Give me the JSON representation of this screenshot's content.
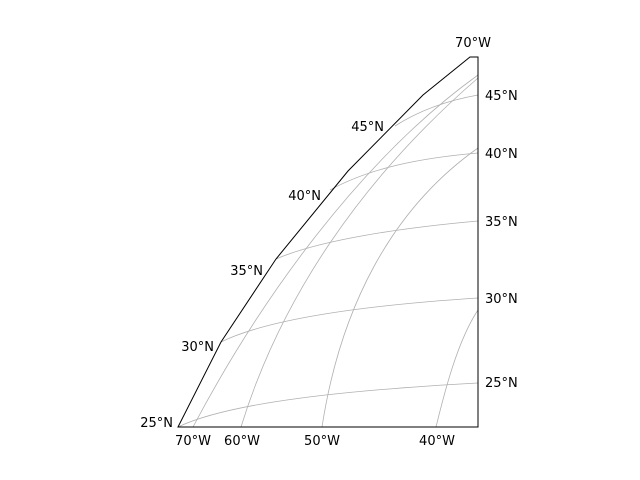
{
  "map": {
    "projection": "conic",
    "grid_color": "#b0b0b0",
    "edge_color": "#000000",
    "meridians": [
      {
        "label": "70°W",
        "lon": -70
      },
      {
        "label": "60°W",
        "lon": -60
      },
      {
        "label": "50°W",
        "lon": -50
      },
      {
        "label": "40°W",
        "lon": -40
      }
    ],
    "parallels": [
      {
        "label": "25°N",
        "lat": 25
      },
      {
        "label": "30°N",
        "lat": 30
      },
      {
        "label": "35°N",
        "lat": 35
      },
      {
        "label": "40°N",
        "lat": 40
      },
      {
        "label": "45°N",
        "lat": 45
      }
    ],
    "top_label": "70°W",
    "left_labels": [
      "25°N",
      "30°N",
      "35°N",
      "40°N",
      "45°N"
    ],
    "right_labels": [
      "25°N",
      "30°N",
      "35°N",
      "40°N",
      "45°N"
    ],
    "bottom_labels": [
      "70°W",
      "60°W",
      "50°W",
      "40°W"
    ]
  }
}
